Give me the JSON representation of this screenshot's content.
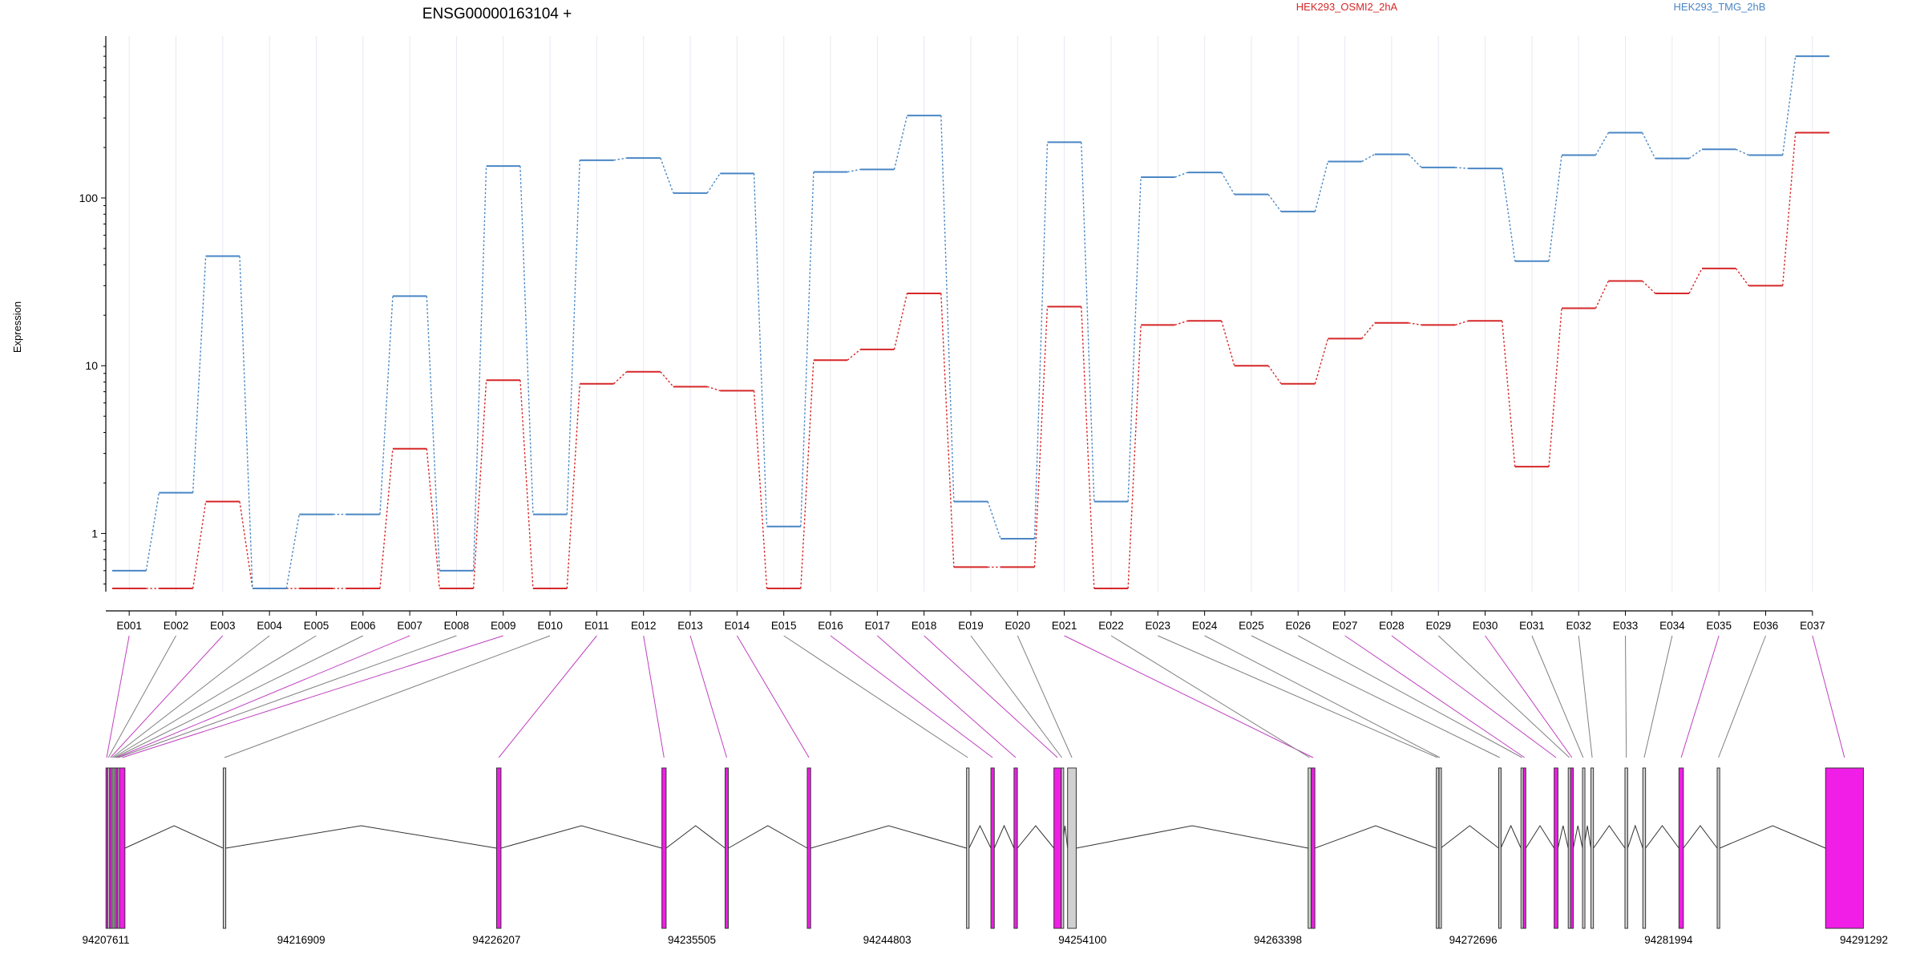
{
  "header": {
    "title": "ENSG00000163104 +",
    "legend": [
      {
        "label": "HEK293_OSMI2_2hA",
        "color": "#d62728"
      },
      {
        "label": "HEK293_TMG_2hB",
        "color": "#4a86c5"
      }
    ]
  },
  "colors": {
    "highlight_fill": "#f01ee6",
    "plain_fill": "#d0d0d0",
    "connector_highlight": "#c040c0",
    "connector_plain": "#808080",
    "grid": "#e6e9f2",
    "axis": "#000000"
  },
  "chart_data": [
    {
      "type": "line",
      "title": "ENSG00000163104 +",
      "ylabel": "Expression",
      "xlabel": "",
      "yscale": "log",
      "ylim": [
        0.45,
        800
      ],
      "yticks": [
        1,
        10,
        100
      ],
      "ytick_labels": [
        "1",
        "10",
        "100"
      ],
      "grid": "vertical",
      "legend_position": "top",
      "categories": [
        "E001",
        "E002",
        "E003",
        "E004",
        "E005",
        "E006",
        "E007",
        "E008",
        "E009",
        "E010",
        "E011",
        "E012",
        "E013",
        "E014",
        "E015",
        "E016",
        "E017",
        "E018",
        "E019",
        "E020",
        "E021",
        "E022",
        "E023",
        "E024",
        "E025",
        "E026",
        "E027",
        "E028",
        "E029",
        "E030",
        "E031",
        "E032",
        "E033",
        "E034",
        "E035",
        "E036",
        "E037"
      ],
      "series": [
        {
          "name": "HEK293_OSMI2_2hA",
          "color": "#d62728",
          "values": [
            0.47,
            0.47,
            1.55,
            0.47,
            0.47,
            0.47,
            3.2,
            0.47,
            8.2,
            0.47,
            7.8,
            9.2,
            7.5,
            7.1,
            0.47,
            10.8,
            12.5,
            27,
            0.63,
            0.63,
            22.5,
            0.47,
            17.5,
            18.5,
            10,
            7.8,
            14.5,
            18,
            17.5,
            18.5,
            2.5,
            22,
            32,
            27,
            38,
            30,
            245
          ]
        },
        {
          "name": "HEK293_TMG_2hB",
          "color": "#4a86c5",
          "values": [
            0.6,
            1.75,
            45,
            0.47,
            1.3,
            1.3,
            26,
            0.6,
            155,
            1.3,
            168,
            173,
            107,
            140,
            1.1,
            143,
            148,
            310,
            1.55,
            0.93,
            215,
            1.55,
            133,
            142,
            105,
            83,
            165,
            182,
            152,
            150,
            42,
            180,
            245,
            172,
            195,
            180,
            700
          ]
        }
      ]
    },
    {
      "type": "gene-model",
      "coordinate_labels": [
        "94207611",
        "94216909",
        "94226207",
        "94235505",
        "94244803",
        "94254100",
        "94263398",
        "94272696",
        "94281994",
        "94291292"
      ],
      "exons": [
        {
          "id": "E001",
          "start": 94207620,
          "end": 94207680,
          "highlight": true
        },
        {
          "id": "E002",
          "start": 94207700,
          "end": 94207760,
          "highlight": false
        },
        {
          "id": "E003",
          "start": 94207790,
          "end": 94207870,
          "highlight": true
        },
        {
          "id": "E004",
          "start": 94207880,
          "end": 94207940,
          "highlight": false
        },
        {
          "id": "E005",
          "start": 94207950,
          "end": 94208010,
          "highlight": false
        },
        {
          "id": "E006",
          "start": 94208020,
          "end": 94208080,
          "highlight": false
        },
        {
          "id": "E007",
          "start": 94208090,
          "end": 94208170,
          "highlight": true
        },
        {
          "id": "E008",
          "start": 94208180,
          "end": 94208240,
          "highlight": false
        },
        {
          "id": "E009",
          "start": 94208260,
          "end": 94208520,
          "highlight": true
        },
        {
          "id": "E010",
          "start": 94213200,
          "end": 94213320,
          "highlight": false
        },
        {
          "id": "E011",
          "start": 94226210,
          "end": 94226420,
          "highlight": true
        },
        {
          "id": "E012",
          "start": 94234080,
          "end": 94234280,
          "highlight": true
        },
        {
          "id": "E013",
          "start": 94237090,
          "end": 94237240,
          "highlight": true
        },
        {
          "id": "E014",
          "start": 94241000,
          "end": 94241160,
          "highlight": true
        },
        {
          "id": "E015",
          "start": 94248580,
          "end": 94248700,
          "highlight": false
        },
        {
          "id": "E016",
          "start": 94249740,
          "end": 94249900,
          "highlight": true
        },
        {
          "id": "E017",
          "start": 94250840,
          "end": 94251000,
          "highlight": true
        },
        {
          "id": "E018",
          "start": 94252740,
          "end": 94253080,
          "highlight": true
        },
        {
          "id": "E019",
          "start": 94253090,
          "end": 94253140,
          "highlight": false
        },
        {
          "id": "E020",
          "start": 94253390,
          "end": 94253800,
          "highlight": false
        },
        {
          "id": "E021",
          "start": 94264990,
          "end": 94265160,
          "highlight": true
        },
        {
          "id": "E022",
          "start": 94264840,
          "end": 94264980,
          "highlight": false
        },
        {
          "id": "E023",
          "start": 94270940,
          "end": 94271060,
          "highlight": false
        },
        {
          "id": "E024",
          "start": 94271070,
          "end": 94271150,
          "highlight": false
        },
        {
          "id": "E025",
          "start": 94273910,
          "end": 94274010,
          "highlight": false
        },
        {
          "id": "E026",
          "start": 94274970,
          "end": 94275070,
          "highlight": false
        },
        {
          "id": "E027",
          "start": 94275080,
          "end": 94275200,
          "highlight": true
        },
        {
          "id": "E028",
          "start": 94276550,
          "end": 94276730,
          "highlight": true
        },
        {
          "id": "E029",
          "start": 94277220,
          "end": 94277330,
          "highlight": false
        },
        {
          "id": "E030",
          "start": 94277330,
          "end": 94277460,
          "highlight": true
        },
        {
          "id": "E031",
          "start": 94277900,
          "end": 94277960,
          "highlight": false
        },
        {
          "id": "E032",
          "start": 94278300,
          "end": 94278420,
          "highlight": false
        },
        {
          "id": "E033",
          "start": 94279920,
          "end": 94280050,
          "highlight": false
        },
        {
          "id": "E034",
          "start": 94280770,
          "end": 94280900,
          "highlight": false
        },
        {
          "id": "E035",
          "start": 94282490,
          "end": 94282700,
          "highlight": true
        },
        {
          "id": "E036",
          "start": 94284310,
          "end": 94284430,
          "highlight": false
        },
        {
          "id": "E037",
          "start": 94289470,
          "end": 94291270,
          "highlight": true
        }
      ]
    }
  ]
}
